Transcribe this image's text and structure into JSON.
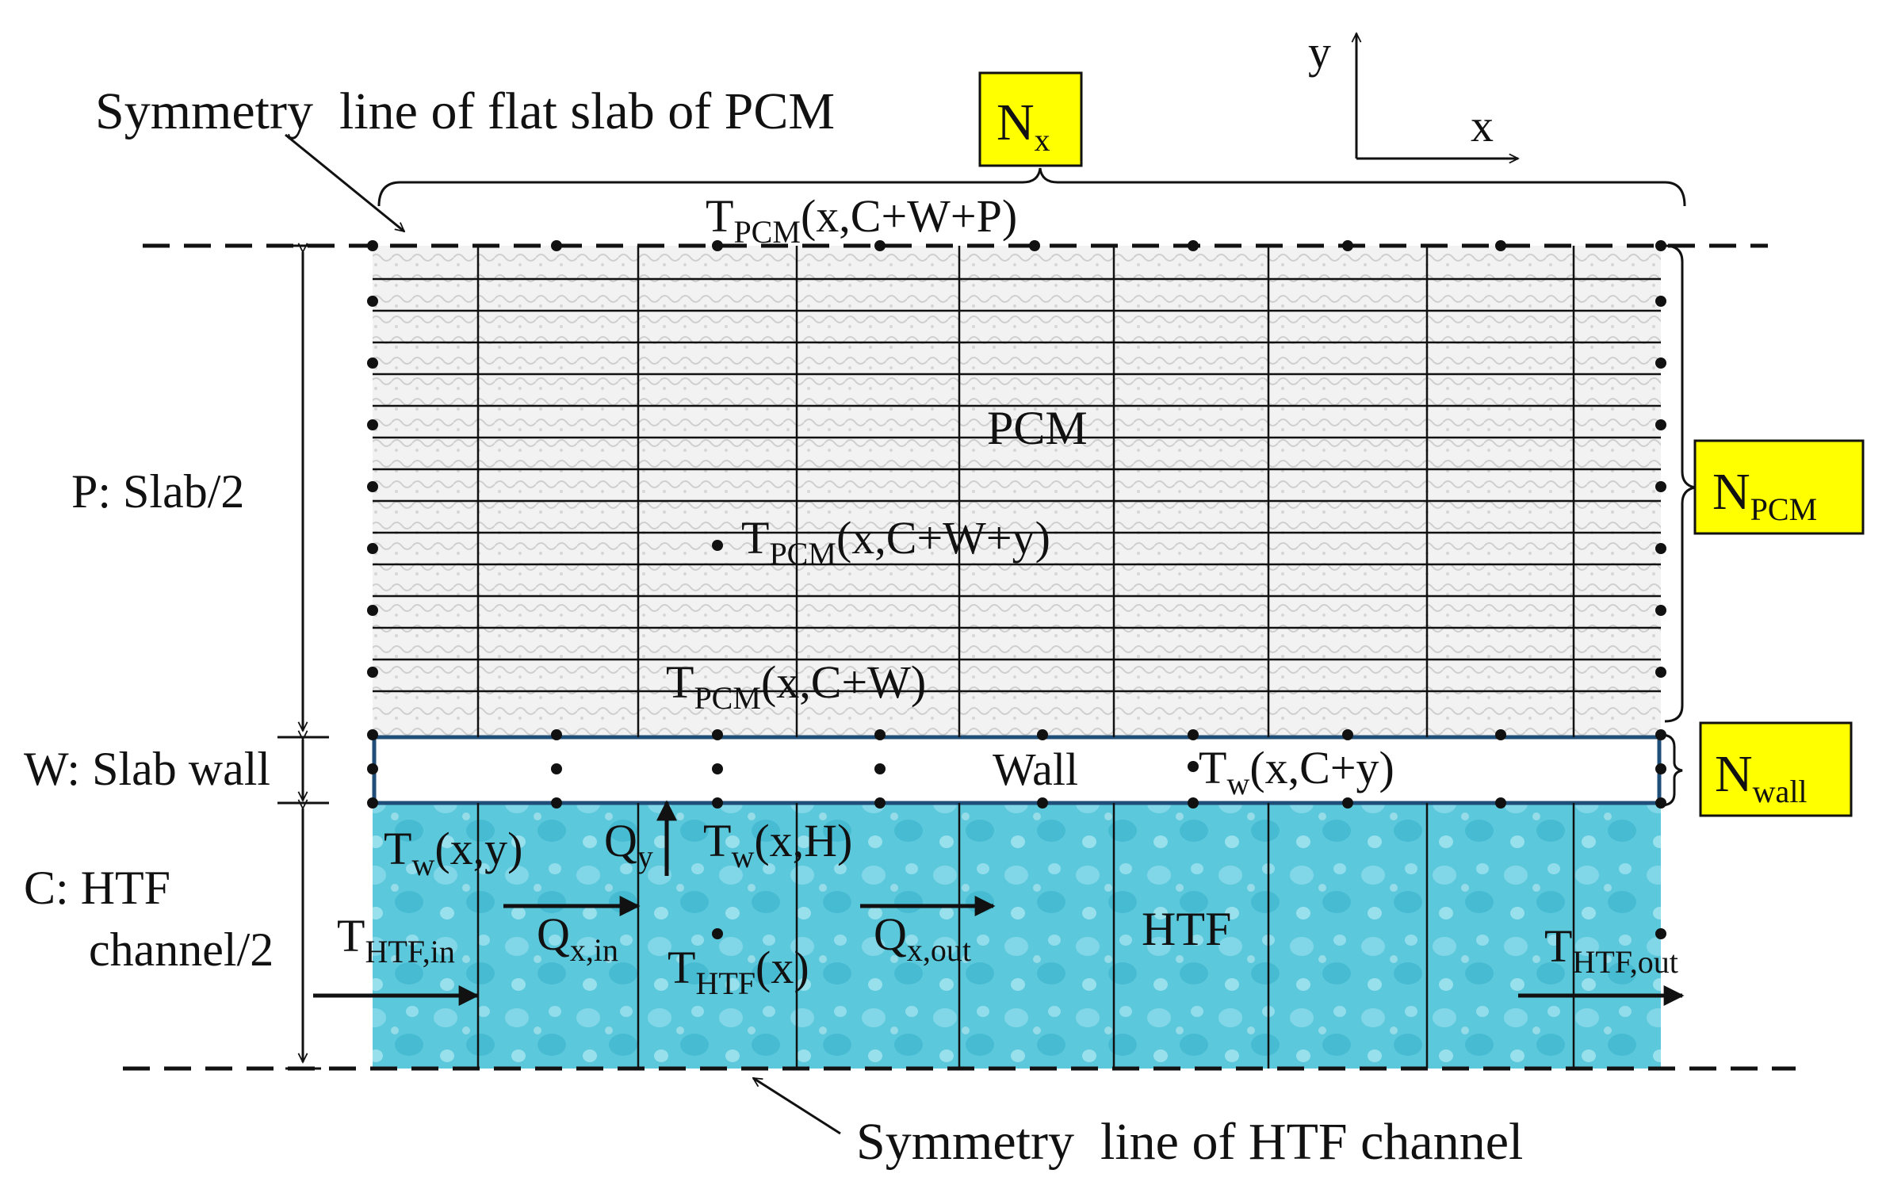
{
  "colors": {
    "ink": "#111111",
    "label_box_fill": "#ffff00",
    "wall_border": "#1f4e79",
    "htf_fill": "#5cc8dc",
    "pcm_fill": "#e6e6e6"
  },
  "labels": {
    "symmetry_top": "Symmetry  line of flat slab of PCM",
    "symmetry_bottom": "Symmetry  line of HTF channel",
    "axis_y": "y",
    "axis_x": "x",
    "dim_p": "P: Slab/2",
    "dim_w": "W: Slab wall",
    "dim_c_line1": "C: HTF",
    "dim_c_line2": "channel/2",
    "region_pcm": "PCM",
    "region_wall": "Wall",
    "region_htf": "HTF"
  },
  "boxes": {
    "nx": {
      "main": "N",
      "sub": "x"
    },
    "npcm": {
      "main": "N",
      "sub": "PCM"
    },
    "nwall": {
      "main": "N",
      "sub": "wall"
    }
  },
  "variables": {
    "t_pcm_top": {
      "main": "T",
      "sub": "PCM",
      "rest": "(x,C+W+P)"
    },
    "t_pcm_mid": {
      "main": "T",
      "sub": "PCM",
      "rest": "(x,C+W+y)"
    },
    "t_pcm_bot": {
      "main": "T",
      "sub": "PCM",
      "rest": "(x,C+W)"
    },
    "t_w_cy": {
      "main": "T",
      "sub": "w",
      "rest": "(x,C+y)"
    },
    "t_w_y": {
      "main": "T",
      "sub": "w",
      "rest": "(x,y)"
    },
    "q_y": {
      "main": "Q",
      "sub": "y",
      "rest": ""
    },
    "t_w_h": {
      "main": "T",
      "sub": "w",
      "rest": "(x,H)"
    },
    "t_htf_in": {
      "main": "T",
      "sub": "HTF,in",
      "rest": ""
    },
    "q_x_in": {
      "main": "Q",
      "sub": "x,in",
      "rest": ""
    },
    "t_htf_x": {
      "main": "T",
      "sub": "HTF",
      "rest": "(x)"
    },
    "q_x_out": {
      "main": "Q",
      "sub": "x,out",
      "rest": ""
    },
    "t_htf_out": {
      "main": "T",
      "sub": "HTF,out",
      "rest": ""
    }
  }
}
